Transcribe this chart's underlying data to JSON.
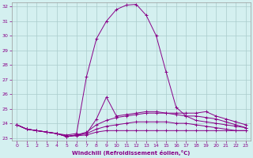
{
  "xlabel": "Windchill (Refroidissement éolien,°C)",
  "background_color": "#d4f0f0",
  "line_color": "#880088",
  "grid_color": "#aacccc",
  "xlim": [
    -0.5,
    23.5
  ],
  "ylim": [
    22.8,
    32.3
  ],
  "yticks": [
    23,
    24,
    25,
    26,
    27,
    28,
    29,
    30,
    31,
    32
  ],
  "xticks": [
    0,
    1,
    2,
    3,
    4,
    5,
    6,
    7,
    8,
    9,
    10,
    11,
    12,
    13,
    14,
    15,
    16,
    17,
    18,
    19,
    20,
    21,
    22,
    23
  ],
  "lines": [
    {
      "x": [
        0,
        1,
        2,
        3,
        4,
        5,
        6,
        7,
        8,
        9,
        10,
        11,
        12,
        13,
        14,
        15,
        16,
        17,
        18,
        19,
        20,
        21,
        22,
        23
      ],
      "y": [
        23.9,
        23.6,
        23.5,
        23.4,
        23.3,
        23.2,
        23.3,
        27.2,
        29.8,
        31.0,
        31.8,
        32.1,
        32.15,
        31.4,
        30.0,
        27.5,
        25.1,
        24.5,
        24.2,
        24.1,
        24.0,
        23.9,
        23.8,
        23.7
      ]
    },
    {
      "x": [
        0,
        1,
        2,
        3,
        4,
        5,
        6,
        7,
        8,
        9,
        10,
        11,
        12,
        13,
        14,
        15,
        16,
        17,
        18,
        19,
        20,
        21,
        22,
        23
      ],
      "y": [
        23.9,
        23.6,
        23.5,
        23.4,
        23.3,
        23.1,
        23.2,
        23.3,
        24.3,
        25.8,
        24.5,
        24.6,
        24.7,
        24.8,
        24.8,
        24.7,
        24.6,
        24.5,
        24.5,
        24.4,
        24.3,
        24.1,
        23.9,
        23.7
      ]
    },
    {
      "x": [
        0,
        1,
        2,
        3,
        4,
        5,
        6,
        7,
        8,
        9,
        10,
        11,
        12,
        13,
        14,
        15,
        16,
        17,
        18,
        19,
        20,
        21,
        22,
        23
      ],
      "y": [
        23.9,
        23.6,
        23.5,
        23.4,
        23.3,
        23.1,
        23.2,
        23.4,
        23.9,
        24.2,
        24.4,
        24.5,
        24.6,
        24.7,
        24.7,
        24.7,
        24.7,
        24.7,
        24.7,
        24.8,
        24.5,
        24.3,
        24.1,
        23.9
      ]
    },
    {
      "x": [
        0,
        1,
        2,
        3,
        4,
        5,
        6,
        7,
        8,
        9,
        10,
        11,
        12,
        13,
        14,
        15,
        16,
        17,
        18,
        19,
        20,
        21,
        22,
        23
      ],
      "y": [
        23.9,
        23.6,
        23.5,
        23.4,
        23.3,
        23.1,
        23.2,
        23.3,
        23.6,
        23.8,
        23.9,
        24.0,
        24.1,
        24.1,
        24.1,
        24.1,
        24.0,
        24.0,
        23.9,
        23.8,
        23.7,
        23.6,
        23.5,
        23.5
      ]
    },
    {
      "x": [
        0,
        1,
        2,
        3,
        4,
        5,
        6,
        7,
        8,
        9,
        10,
        11,
        12,
        13,
        14,
        15,
        16,
        17,
        18,
        19,
        20,
        21,
        22,
        23
      ],
      "y": [
        23.9,
        23.6,
        23.5,
        23.4,
        23.3,
        23.1,
        23.15,
        23.2,
        23.4,
        23.5,
        23.5,
        23.5,
        23.5,
        23.5,
        23.5,
        23.5,
        23.5,
        23.5,
        23.5,
        23.5,
        23.5,
        23.5,
        23.5,
        23.5
      ]
    }
  ]
}
